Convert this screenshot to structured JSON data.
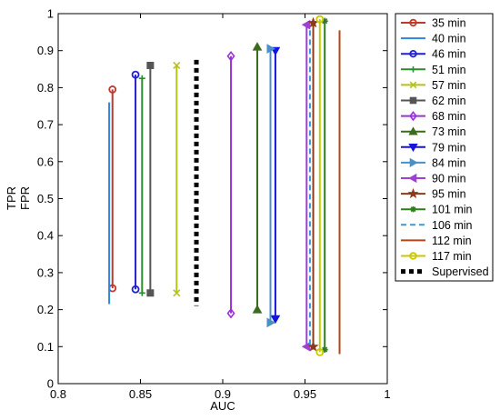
{
  "chart_data": {
    "type": "line",
    "xlabel": "AUC",
    "ylabel_lines": [
      "TPR",
      "FPR"
    ],
    "xlim": [
      0.8,
      1.0
    ],
    "ylim": [
      0,
      1
    ],
    "xticks": [
      0.8,
      0.85,
      0.9,
      0.95,
      1.0
    ],
    "xtick_labels": [
      "0.8",
      "0.85",
      "0.9",
      "0.95",
      "1"
    ],
    "yticks": [
      0,
      0.1,
      0.2,
      0.3,
      0.4,
      0.5,
      0.6,
      0.7,
      0.8,
      0.9,
      1
    ],
    "ytick_labels": [
      "0",
      "0.1",
      "0.2",
      "0.3",
      "0.4",
      "0.5",
      "0.6",
      "0.7",
      "0.8",
      "0.9",
      "1"
    ],
    "grid": false,
    "legend_position": "outside-right",
    "series": [
      {
        "name": "35 min",
        "x": 0.833,
        "tpr": 0.795,
        "fpr": 0.258,
        "color": "#c0392b",
        "marker": "circle",
        "dash": "solid"
      },
      {
        "name": "40 min",
        "x": 0.831,
        "tpr": 0.76,
        "fpr": 0.215,
        "color": "#2e86de",
        "marker": "none",
        "dash": "solid"
      },
      {
        "name": "46 min",
        "x": 0.847,
        "tpr": 0.835,
        "fpr": 0.255,
        "color": "#1f1fd6",
        "marker": "circle",
        "dash": "solid"
      },
      {
        "name": "51 min",
        "x": 0.851,
        "tpr": 0.825,
        "fpr": 0.245,
        "color": "#2e8b2e",
        "marker": "plus",
        "dash": "solid"
      },
      {
        "name": "57 min",
        "x": 0.872,
        "tpr": 0.86,
        "fpr": 0.245,
        "color": "#b5c218",
        "marker": "x",
        "dash": "solid"
      },
      {
        "name": "62 min",
        "x": 0.856,
        "tpr": 0.86,
        "fpr": 0.245,
        "color": "#555555",
        "marker": "square",
        "dash": "solid"
      },
      {
        "name": "68 min",
        "x": 0.905,
        "tpr": 0.885,
        "fpr": 0.19,
        "color": "#9b30d9",
        "marker": "diamond",
        "dash": "solid"
      },
      {
        "name": "73 min",
        "x": 0.921,
        "tpr": 0.91,
        "fpr": 0.2,
        "color": "#3d6b1e",
        "marker": "triangle-up",
        "dash": "solid"
      },
      {
        "name": "79 min",
        "x": 0.932,
        "tpr": 0.9,
        "fpr": 0.175,
        "color": "#1515e0",
        "marker": "triangle-down",
        "dash": "solid"
      },
      {
        "name": "84 min",
        "x": 0.929,
        "tpr": 0.905,
        "fpr": 0.165,
        "color": "#4a90c8",
        "marker": "triangle-right",
        "dash": "solid"
      },
      {
        "name": "90 min",
        "x": 0.951,
        "tpr": 0.97,
        "fpr": 0.1,
        "color": "#a040d0",
        "marker": "triangle-left",
        "dash": "solid"
      },
      {
        "name": "95 min",
        "x": 0.955,
        "tpr": 0.975,
        "fpr": 0.1,
        "color": "#8b3a1a",
        "marker": "star",
        "dash": "solid"
      },
      {
        "name": "101 min",
        "x": 0.962,
        "tpr": 0.98,
        "fpr": 0.092,
        "color": "#2e7d1e",
        "marker": "asterisk",
        "dash": "solid"
      },
      {
        "name": "106 min",
        "x": 0.953,
        "tpr": 0.955,
        "fpr": 0.095,
        "color": "#3a9ad9",
        "marker": "none",
        "dash": "dashed"
      },
      {
        "name": "112 min",
        "x": 0.971,
        "tpr": 0.955,
        "fpr": 0.08,
        "color": "#b5451b",
        "marker": "none",
        "dash": "solid"
      },
      {
        "name": "117 min",
        "x": 0.959,
        "tpr": 0.985,
        "fpr": 0.085,
        "color": "#c8c800",
        "marker": "circle",
        "dash": "solid"
      },
      {
        "name": "Supervised",
        "x": 0.884,
        "tpr": 0.875,
        "fpr": 0.21,
        "color": "#000000",
        "marker": "none",
        "dash": "dotted-thick"
      }
    ]
  }
}
